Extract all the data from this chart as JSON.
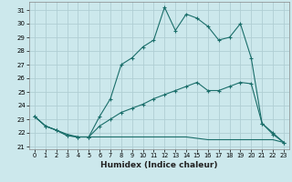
{
  "xlabel": "Humidex (Indice chaleur)",
  "bg_color": "#cce8ec",
  "grid_color": "#b0ced4",
  "line_color": "#1a6e6a",
  "xlim": [
    -0.5,
    23.5
  ],
  "ylim": [
    20.8,
    31.6
  ],
  "xticks": [
    0,
    1,
    2,
    3,
    4,
    5,
    6,
    7,
    8,
    9,
    10,
    11,
    12,
    13,
    14,
    15,
    16,
    17,
    18,
    19,
    20,
    21,
    22,
    23
  ],
  "yticks": [
    21,
    22,
    23,
    24,
    25,
    26,
    27,
    28,
    29,
    30,
    31
  ],
  "line1_x": [
    0,
    1,
    2,
    3,
    4,
    5,
    6,
    7,
    8,
    9,
    10,
    11,
    12,
    13,
    14,
    15,
    16,
    17,
    18,
    19,
    20,
    21,
    22,
    23
  ],
  "line1_y": [
    23.2,
    22.5,
    22.2,
    21.8,
    21.7,
    21.7,
    23.2,
    24.5,
    27.0,
    27.5,
    28.3,
    28.8,
    31.2,
    29.5,
    30.7,
    30.4,
    29.8,
    28.8,
    29.0,
    30.0,
    27.5,
    22.7,
    22.0,
    21.3
  ],
  "line2_x": [
    0,
    1,
    2,
    3,
    4,
    5,
    6,
    7,
    8,
    9,
    10,
    11,
    12,
    13,
    14,
    15,
    16,
    17,
    18,
    19,
    20,
    21,
    22,
    23
  ],
  "line2_y": [
    23.2,
    22.5,
    22.2,
    21.8,
    21.7,
    21.7,
    22.5,
    23.0,
    23.5,
    23.8,
    24.1,
    24.5,
    24.8,
    25.1,
    25.4,
    25.7,
    25.1,
    25.1,
    25.4,
    25.7,
    25.6,
    22.7,
    21.9,
    21.3
  ],
  "line3_x": [
    0,
    1,
    2,
    3,
    4,
    5,
    6,
    7,
    8,
    9,
    10,
    11,
    12,
    13,
    14,
    15,
    16,
    17,
    18,
    19,
    20,
    21,
    22,
    23
  ],
  "line3_y": [
    23.2,
    22.5,
    22.2,
    21.9,
    21.7,
    21.7,
    21.7,
    21.7,
    21.7,
    21.7,
    21.7,
    21.7,
    21.7,
    21.7,
    21.7,
    21.6,
    21.5,
    21.5,
    21.5,
    21.5,
    21.5,
    21.5,
    21.5,
    21.3
  ]
}
